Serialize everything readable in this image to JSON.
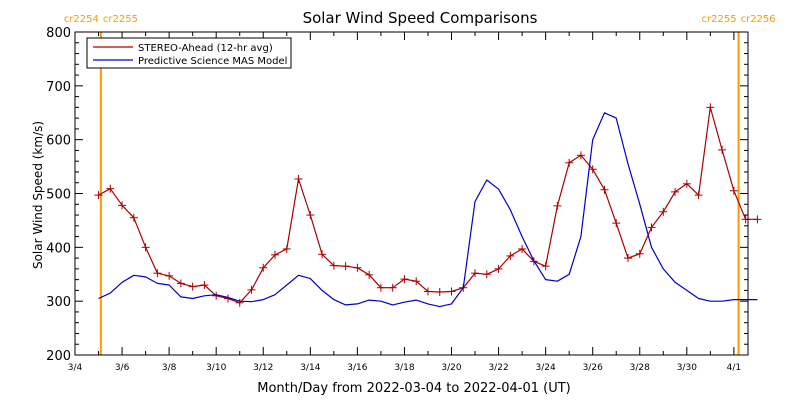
{
  "chart_data": {
    "type": "line",
    "title": "Solar Wind Speed Comparisons",
    "xlabel": "Month/Day from 2022-03-04 to 2022-04-01 (UT)",
    "ylabel": "Solar Wind Speed (km/s)",
    "xlim": [
      0,
      28
    ],
    "ylim": [
      200,
      800
    ],
    "y_ticks": [
      200,
      300,
      400,
      500,
      600,
      700,
      800
    ],
    "x_ticks": [
      {
        "x": 0,
        "label": "3/4"
      },
      {
        "x": 2,
        "label": "3/6"
      },
      {
        "x": 4,
        "label": "3/8"
      },
      {
        "x": 6,
        "label": "3/10"
      },
      {
        "x": 8,
        "label": "3/12"
      },
      {
        "x": 10,
        "label": "3/14"
      },
      {
        "x": 12,
        "label": "3/16"
      },
      {
        "x": 14,
        "label": "3/18"
      },
      {
        "x": 16,
        "label": "3/20"
      },
      {
        "x": 18,
        "label": "3/22"
      },
      {
        "x": 20,
        "label": "3/24"
      },
      {
        "x": 22,
        "label": "3/26"
      },
      {
        "x": 24,
        "label": "3/28"
      },
      {
        "x": 26,
        "label": "3/30"
      },
      {
        "x": 28,
        "label": "4/1"
      }
    ],
    "carrington_markers": [
      {
        "x": 1.1,
        "left_label": "cr2254",
        "right_label": "cr2255"
      },
      {
        "x": 28.2,
        "left_label": "cr2255",
        "right_label": "cr2256"
      }
    ],
    "legend_position": "top-left",
    "grid": false,
    "series": [
      {
        "name": "STEREO-Ahead (12-hr avg)",
        "color": "#aa0000",
        "markers": true,
        "x": [
          1.0,
          1.5,
          2.0,
          2.5,
          3.0,
          3.5,
          4.0,
          4.5,
          5.0,
          5.5,
          6.0,
          6.5,
          7.0,
          7.5,
          8.0,
          8.5,
          9.0,
          9.5,
          10.0,
          10.5,
          11.0,
          11.5,
          12.0,
          12.5,
          13.0,
          13.5,
          14.0,
          14.5,
          15.0,
          15.5,
          16.0,
          16.5,
          17.0,
          17.5,
          18.0,
          18.5,
          19.0,
          19.5,
          20.0,
          20.5,
          21.0,
          21.5,
          22.0,
          22.5,
          23.0,
          23.5,
          24.0,
          24.5,
          25.0,
          25.5,
          26.0,
          26.5,
          27.0,
          27.5,
          28.0,
          28.5,
          29.0
        ],
        "values": [
          497,
          509,
          478,
          455,
          400,
          352,
          347,
          333,
          327,
          330,
          310,
          305,
          297,
          321,
          362,
          386,
          397,
          527,
          460,
          387,
          366,
          365,
          362,
          349,
          325,
          325,
          341,
          337,
          318,
          317,
          318,
          325,
          352,
          350,
          360,
          384,
          397,
          374,
          365,
          477,
          557,
          571,
          545,
          507,
          445,
          380,
          388,
          437,
          466,
          503,
          518,
          497,
          660,
          581,
          505,
          452,
          452
        ]
      },
      {
        "name": "Predictive Science MAS Model",
        "color": "#0000cc",
        "markers": false,
        "x": [
          1.0,
          1.5,
          2.0,
          2.5,
          3.0,
          3.5,
          4.0,
          4.5,
          5.0,
          5.5,
          6.0,
          6.5,
          7.0,
          7.5,
          8.0,
          8.5,
          9.0,
          9.5,
          10.0,
          10.5,
          11.0,
          11.5,
          12.0,
          12.5,
          13.0,
          13.5,
          14.0,
          14.5,
          15.0,
          15.5,
          16.0,
          16.5,
          17.0,
          17.5,
          18.0,
          18.5,
          19.0,
          19.5,
          20.0,
          20.5,
          21.0,
          21.5,
          22.0,
          22.5,
          23.0,
          23.5,
          24.0,
          24.5,
          25.0,
          25.5,
          26.0,
          26.5,
          27.0,
          27.5,
          28.0,
          28.5,
          29.0
        ],
        "values": [
          305,
          315,
          335,
          348,
          345,
          333,
          330,
          308,
          305,
          310,
          312,
          307,
          300,
          299,
          303,
          312,
          330,
          348,
          342,
          320,
          303,
          293,
          295,
          302,
          300,
          293,
          298,
          302,
          295,
          290,
          295,
          325,
          485,
          525,
          508,
          470,
          420,
          375,
          340,
          337,
          350,
          420,
          600,
          650,
          640,
          555,
          480,
          400,
          360,
          335,
          320,
          305,
          300,
          300,
          303,
          303,
          303
        ]
      }
    ]
  }
}
